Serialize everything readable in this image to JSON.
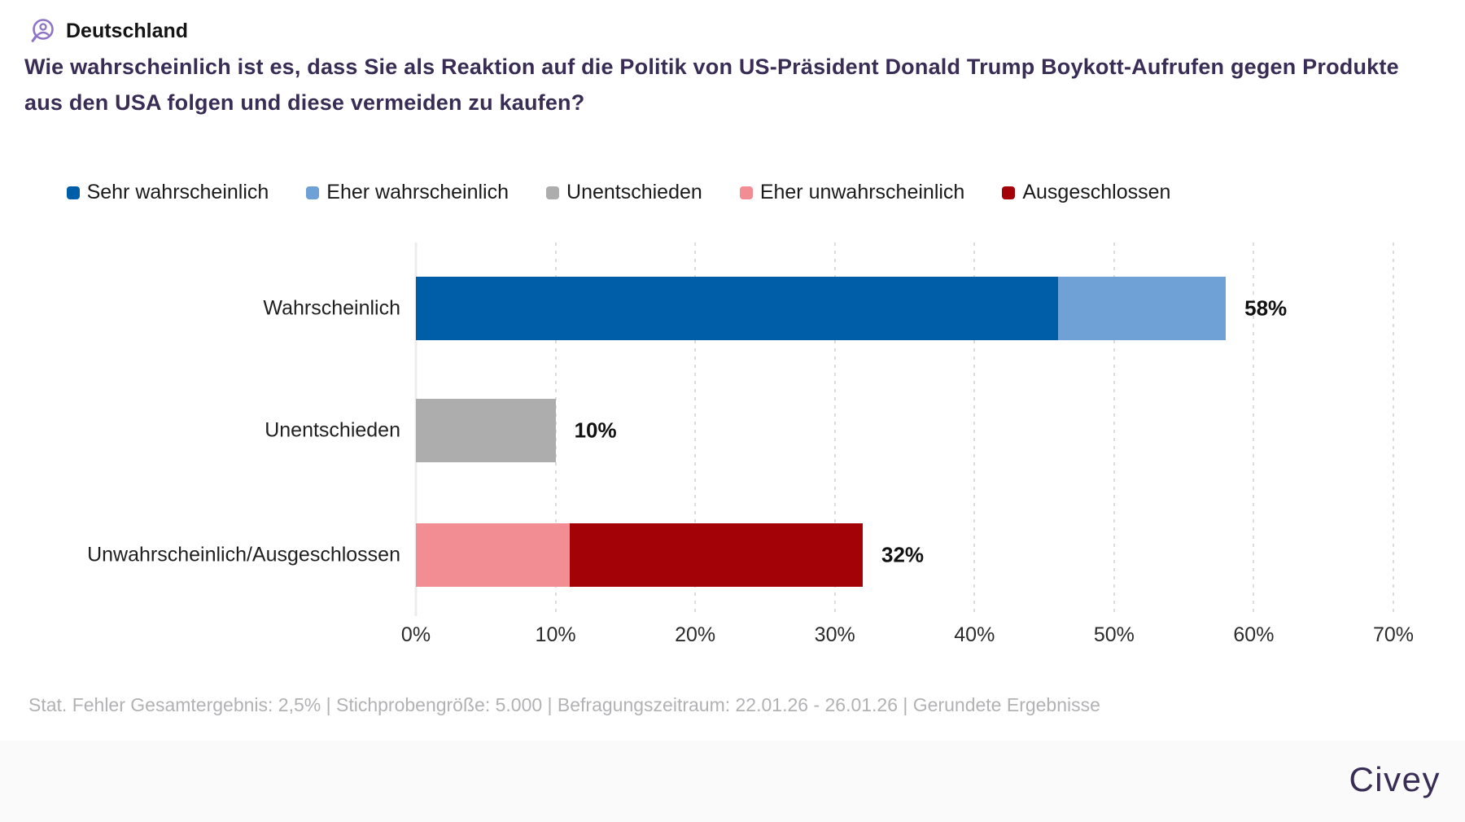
{
  "header": {
    "region_label": "Deutschland",
    "title_line1": "Wie wahrscheinlich ist es, dass Sie als Reaktion auf die Politik von US-Präsident Donald Trump Boykott-Aufrufen gegen Produkte",
    "title_line2": "aus den USA folgen und diese vermeiden zu kaufen?"
  },
  "legend": [
    {
      "label": "Sehr wahrscheinlich",
      "color": "#005EA8"
    },
    {
      "label": "Eher wahrscheinlich",
      "color": "#6FA0D6"
    },
    {
      "label": "Unentschieden",
      "color": "#ADADAD"
    },
    {
      "label": "Eher unwahrscheinlich",
      "color": "#F18D93"
    },
    {
      "label": "Ausgeschlossen",
      "color": "#A30206"
    }
  ],
  "chart_data": {
    "type": "bar",
    "orientation": "horizontal",
    "stacked": true,
    "categories": [
      "Wahrscheinlich",
      "Unentschieden",
      "Unwahrscheinlich/Ausgeschlossen"
    ],
    "series": [
      {
        "name": "Sehr wahrscheinlich",
        "color": "#005EA8",
        "values": [
          46,
          0,
          0
        ]
      },
      {
        "name": "Eher wahrscheinlich",
        "color": "#6FA0D6",
        "values": [
          12,
          0,
          0
        ]
      },
      {
        "name": "Unentschieden",
        "color": "#ADADAD",
        "values": [
          0,
          10,
          0
        ]
      },
      {
        "name": "Eher unwahrscheinlich",
        "color": "#F18D93",
        "values": [
          0,
          0,
          11
        ]
      },
      {
        "name": "Ausgeschlossen",
        "color": "#A30206",
        "values": [
          0,
          0,
          21
        ]
      }
    ],
    "totals": [
      "58%",
      "10%",
      "32%"
    ],
    "x_ticks": [
      "0%",
      "10%",
      "20%",
      "30%",
      "40%",
      "50%",
      "60%",
      "70%"
    ],
    "xlim": [
      0,
      70
    ],
    "xlabel": "",
    "ylabel": "",
    "grid": "vertical-dashed",
    "legend_position": "top"
  },
  "footer": {
    "stats": "Stat. Fehler Gesamtergebnis: 2,5% | Stichprobengröße: 5.000 | Befragungszeitraum: 22.01.26 - 26.01.26 | Gerundete Ergebnisse",
    "brand": "Civey"
  }
}
